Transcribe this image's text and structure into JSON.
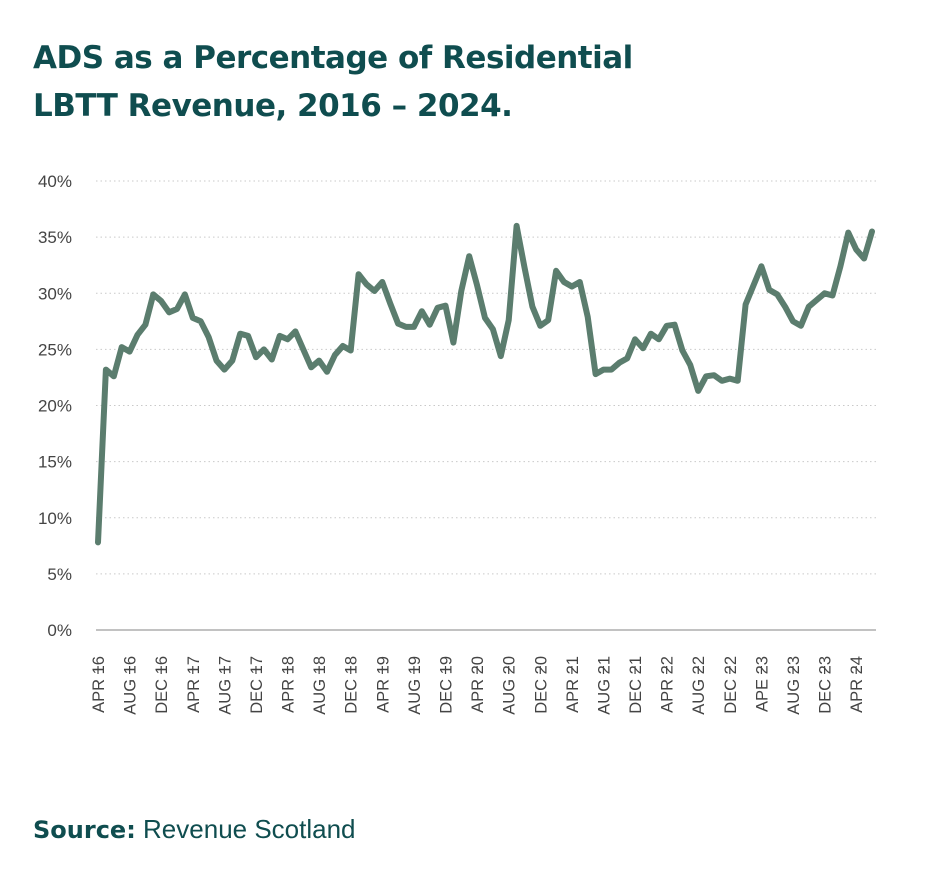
{
  "title": {
    "line1": "ADS as a Percentage of Residential",
    "line2": "LBTT Revenue, 2016 – 2024."
  },
  "source": {
    "label": "Source:",
    "text": "Revenue Scotland"
  },
  "colors": {
    "title": "#0f4d4f",
    "line": "#5b7d6e",
    "grid": "#c9c9c9",
    "axis": "#9e9e9e",
    "tick_text": "#444444"
  },
  "chart_data": {
    "type": "line",
    "title": "ADS as a Percentage of Residential LBTT Revenue, 2016 – 2024.",
    "xlabel": "",
    "ylabel": "",
    "ylim": [
      0,
      40
    ],
    "yticks": [
      "0%",
      "5%",
      "10%",
      "15%",
      "20%",
      "25%",
      "30%",
      "35%",
      "40%"
    ],
    "grid": "horizontal dotted",
    "x_tick_labels": [
      "APR 16",
      "AUG 16",
      "DEC 16",
      "APR 17",
      "AUG 17",
      "DEC 17",
      "APR 18",
      "AUG 18",
      "DEC 18",
      "APR 19",
      "AUG 19",
      "DEC 19",
      "APR 20",
      "AUG 20",
      "DEC 20",
      "APR 21",
      "AUG 21",
      "DEC 21",
      "APR 22",
      "AUG 22",
      "DEC 22",
      "APE 23",
      "AUG 23",
      "DEC 23",
      "APR 24"
    ],
    "series": [
      {
        "values": [
          7.8,
          23.2,
          22.6,
          25.2,
          24.8,
          26.3,
          27.2,
          29.9,
          29.3,
          28.3,
          28.6,
          29.9,
          27.8,
          27.5,
          26.1,
          24.0,
          23.2,
          24.0,
          26.4,
          26.2,
          24.3,
          25.0,
          24.1,
          26.2,
          25.9,
          26.6,
          25.0,
          23.4,
          24.0,
          23.0,
          24.5,
          25.3,
          24.9,
          31.7,
          30.8,
          30.2,
          31.0,
          29.1,
          27.3,
          27.0,
          27.0,
          28.4,
          27.2,
          28.7,
          28.9,
          25.6,
          30.2,
          33.3,
          30.7,
          27.8,
          26.8,
          24.4,
          27.6,
          36.0,
          32.3,
          28.8,
          27.1,
          27.6,
          32.0,
          31.0,
          30.6,
          31.0,
          27.9,
          22.8,
          23.2,
          23.2,
          23.8,
          24.2,
          25.9,
          25.1,
          26.4,
          25.9,
          27.1,
          27.2,
          24.9,
          23.6,
          21.3,
          22.6,
          22.7,
          22.2,
          22.4,
          22.2,
          29.0,
          30.7,
          32.4,
          30.3,
          29.9,
          28.8,
          27.5,
          27.1,
          28.8,
          29.4,
          30.0,
          29.8,
          32.4,
          35.4,
          33.9,
          33.1,
          35.5
        ]
      }
    ]
  }
}
